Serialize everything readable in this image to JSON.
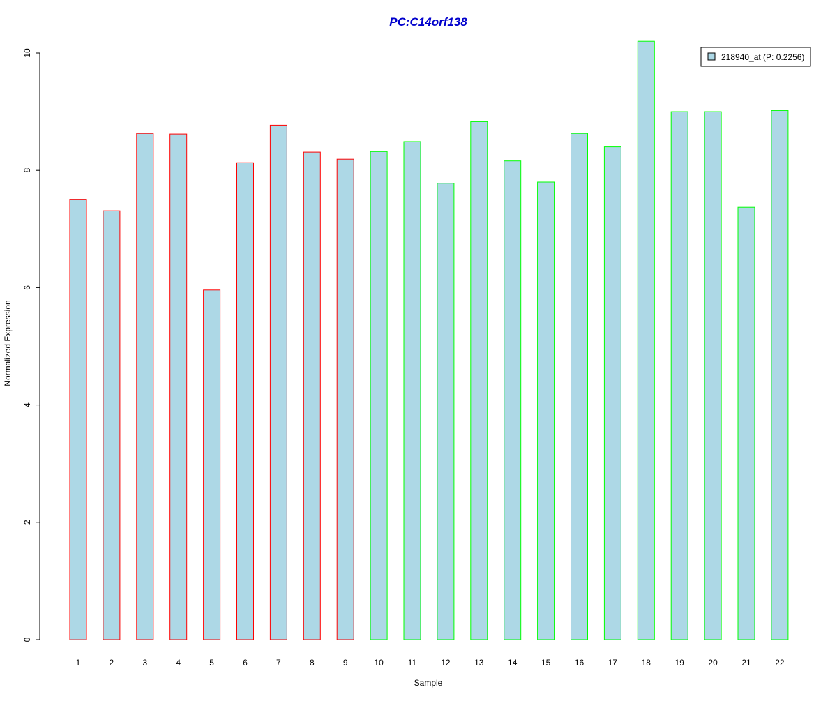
{
  "chart_data": {
    "type": "bar",
    "title": "PC:C14orf138",
    "xlabel": "Sample",
    "ylabel": "Normalized Expression",
    "categories": [
      "1",
      "2",
      "3",
      "4",
      "5",
      "6",
      "7",
      "8",
      "9",
      "10",
      "11",
      "12",
      "13",
      "14",
      "15",
      "16",
      "17",
      "18",
      "19",
      "20",
      "21",
      "22"
    ],
    "series": [
      {
        "name": "218940_at (P: 0.2256)",
        "values": [
          7.5,
          7.31,
          8.63,
          8.62,
          5.96,
          8.13,
          8.77,
          8.31,
          8.19,
          8.32,
          8.49,
          7.78,
          8.83,
          8.16,
          7.8,
          8.63,
          8.4,
          10.2,
          9.0,
          9.0,
          7.37,
          9.02
        ]
      }
    ],
    "group_border_colors": [
      "#FF0000",
      "#FF0000",
      "#FF0000",
      "#FF0000",
      "#FF0000",
      "#FF0000",
      "#FF0000",
      "#FF0000",
      "#FF0000",
      "#00FF00",
      "#00FF00",
      "#00FF00",
      "#00FF00",
      "#00FF00",
      "#00FF00",
      "#00FF00",
      "#00FF00",
      "#00FF00",
      "#00FF00",
      "#00FF00",
      "#00FF00",
      "#00FF00"
    ],
    "ylim": [
      0,
      10.2
    ],
    "yticks": [
      0,
      2,
      4,
      6,
      8,
      10
    ],
    "grid": false,
    "legend_position": "top-right",
    "colors": {
      "bar_fill": "#ADD8E6",
      "title": "#0000CC",
      "legend_border": "#000000"
    }
  }
}
